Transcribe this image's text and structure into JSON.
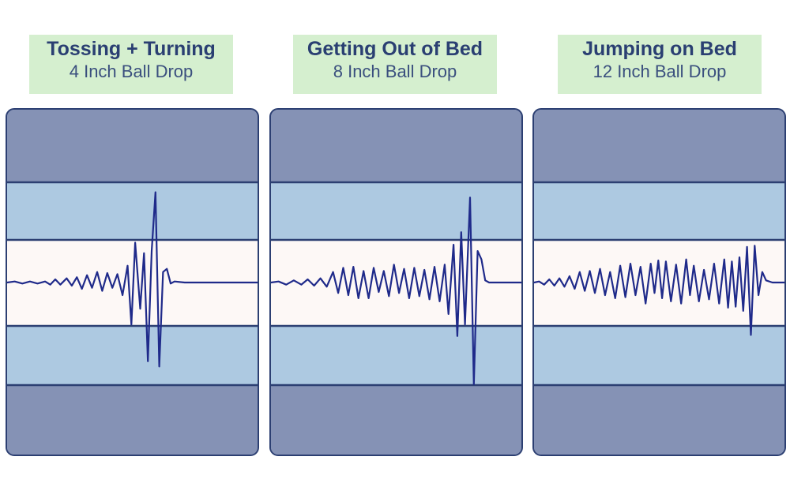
{
  "colors": {
    "outer_band": "#8592b5",
    "middle_band": "#adc9e1",
    "center_band": "#fdf8f6",
    "band_border": "#2c3f72",
    "label_bg": "#d5efcf",
    "label_text": "#2a3f72",
    "waveform": "#1f2a8a"
  },
  "panels": [
    {
      "title": "Tossing + Turning",
      "subtitle": "4 Inch Ball Drop"
    },
    {
      "title": "Getting Out of Bed",
      "subtitle": "8 Inch Ball Drop"
    },
    {
      "title": "Jumping on Bed",
      "subtitle": "12 Inch Ball Drop"
    }
  ],
  "chart_data": [
    {
      "type": "line",
      "title": "Tossing + Turning",
      "subtitle": "4 Inch Ball Drop",
      "axes_visible": false,
      "ylim": [
        -1,
        1
      ],
      "xlim": [
        0,
        1
      ],
      "series": [
        {
          "points": [
            [
              0,
              0
            ],
            [
              0.03,
              0.01
            ],
            [
              0.06,
              -0.01
            ],
            [
              0.09,
              0.01
            ],
            [
              0.12,
              -0.01
            ],
            [
              0.15,
              0.01
            ],
            [
              0.17,
              -0.02
            ],
            [
              0.19,
              0.03
            ],
            [
              0.21,
              -0.02
            ],
            [
              0.235,
              0.04
            ],
            [
              0.255,
              -0.03
            ],
            [
              0.275,
              0.05
            ],
            [
              0.295,
              -0.06
            ],
            [
              0.315,
              0.07
            ],
            [
              0.335,
              -0.05
            ],
            [
              0.355,
              0.1
            ],
            [
              0.375,
              -0.08
            ],
            [
              0.395,
              0.09
            ],
            [
              0.415,
              -0.05
            ],
            [
              0.435,
              0.08
            ],
            [
              0.455,
              -0.12
            ],
            [
              0.475,
              0.16
            ],
            [
              0.49,
              -0.4
            ],
            [
              0.505,
              0.38
            ],
            [
              0.525,
              -0.25
            ],
            [
              0.54,
              0.28
            ],
            [
              0.555,
              -0.75
            ],
            [
              0.57,
              0.3
            ],
            [
              0.585,
              0.86
            ],
            [
              0.6,
              -0.8
            ],
            [
              0.615,
              0.1
            ],
            [
              0.63,
              0.13
            ],
            [
              0.645,
              -0.01
            ],
            [
              0.66,
              0.01
            ],
            [
              0.7,
              0
            ],
            [
              0.75,
              0
            ],
            [
              0.8,
              0
            ],
            [
              0.85,
              0
            ],
            [
              0.9,
              0
            ],
            [
              0.95,
              0
            ],
            [
              1,
              0
            ]
          ]
        }
      ]
    },
    {
      "type": "line",
      "title": "Getting Out of Bed",
      "subtitle": "8 Inch Ball Drop",
      "axes_visible": false,
      "ylim": [
        -1,
        1
      ],
      "xlim": [
        0,
        1
      ],
      "series": [
        {
          "points": [
            [
              0,
              0
            ],
            [
              0.03,
              0.01
            ],
            [
              0.06,
              -0.02
            ],
            [
              0.09,
              0.02
            ],
            [
              0.12,
              -0.02
            ],
            [
              0.145,
              0.03
            ],
            [
              0.17,
              -0.03
            ],
            [
              0.195,
              0.04
            ],
            [
              0.22,
              -0.04
            ],
            [
              0.245,
              0.1
            ],
            [
              0.265,
              -0.1
            ],
            [
              0.285,
              0.14
            ],
            [
              0.305,
              -0.12
            ],
            [
              0.325,
              0.15
            ],
            [
              0.345,
              -0.15
            ],
            [
              0.365,
              0.11
            ],
            [
              0.385,
              -0.15
            ],
            [
              0.405,
              0.14
            ],
            [
              0.425,
              -0.09
            ],
            [
              0.445,
              0.11
            ],
            [
              0.465,
              -0.13
            ],
            [
              0.485,
              0.17
            ],
            [
              0.505,
              -0.1
            ],
            [
              0.525,
              0.13
            ],
            [
              0.545,
              -0.15
            ],
            [
              0.565,
              0.14
            ],
            [
              0.585,
              -0.13
            ],
            [
              0.605,
              0.12
            ],
            [
              0.625,
              -0.16
            ],
            [
              0.645,
              0.15
            ],
            [
              0.665,
              -0.18
            ],
            [
              0.685,
              0.17
            ],
            [
              0.7,
              -0.3
            ],
            [
              0.72,
              0.36
            ],
            [
              0.735,
              -0.51
            ],
            [
              0.75,
              0.48
            ],
            [
              0.765,
              -0.4
            ],
            [
              0.785,
              0.81
            ],
            [
              0.8,
              -0.97
            ],
            [
              0.815,
              0.3
            ],
            [
              0.83,
              0.22
            ],
            [
              0.845,
              0.02
            ],
            [
              0.86,
              0
            ],
            [
              0.9,
              0
            ],
            [
              0.95,
              0
            ],
            [
              1,
              0
            ]
          ]
        }
      ]
    },
    {
      "type": "line",
      "title": "Jumping on Bed",
      "subtitle": "12 Inch Ball Drop",
      "axes_visible": false,
      "ylim": [
        -1,
        1
      ],
      "xlim": [
        0,
        1
      ],
      "series": [
        {
          "points": [
            [
              0,
              0
            ],
            [
              0.02,
              0.01
            ],
            [
              0.04,
              -0.02
            ],
            [
              0.06,
              0.03
            ],
            [
              0.08,
              -0.03
            ],
            [
              0.1,
              0.04
            ],
            [
              0.12,
              -0.04
            ],
            [
              0.14,
              0.06
            ],
            [
              0.16,
              -0.06
            ],
            [
              0.18,
              0.1
            ],
            [
              0.2,
              -0.08
            ],
            [
              0.22,
              0.11
            ],
            [
              0.24,
              -0.1
            ],
            [
              0.26,
              0.13
            ],
            [
              0.28,
              -0.12
            ],
            [
              0.3,
              0.1
            ],
            [
              0.32,
              -0.15
            ],
            [
              0.34,
              0.16
            ],
            [
              0.36,
              -0.14
            ],
            [
              0.38,
              0.18
            ],
            [
              0.4,
              -0.12
            ],
            [
              0.42,
              0.15
            ],
            [
              0.44,
              -0.2
            ],
            [
              0.46,
              0.18
            ],
            [
              0.475,
              -0.1
            ],
            [
              0.49,
              0.21
            ],
            [
              0.505,
              -0.15
            ],
            [
              0.52,
              0.2
            ],
            [
              0.54,
              -0.18
            ],
            [
              0.56,
              0.17
            ],
            [
              0.58,
              -0.2
            ],
            [
              0.6,
              0.22
            ],
            [
              0.615,
              -0.12
            ],
            [
              0.63,
              0.16
            ],
            [
              0.65,
              -0.18
            ],
            [
              0.67,
              0.12
            ],
            [
              0.69,
              -0.16
            ],
            [
              0.71,
              0.18
            ],
            [
              0.73,
              -0.2
            ],
            [
              0.75,
              0.22
            ],
            [
              0.765,
              -0.24
            ],
            [
              0.78,
              0.2
            ],
            [
              0.795,
              -0.23
            ],
            [
              0.81,
              0.24
            ],
            [
              0.825,
              -0.27
            ],
            [
              0.84,
              0.34
            ],
            [
              0.855,
              -0.5
            ],
            [
              0.87,
              0.35
            ],
            [
              0.885,
              -0.12
            ],
            [
              0.9,
              0.1
            ],
            [
              0.915,
              0.02
            ],
            [
              0.94,
              0
            ],
            [
              0.97,
              0
            ],
            [
              1,
              0
            ]
          ]
        }
      ]
    }
  ]
}
